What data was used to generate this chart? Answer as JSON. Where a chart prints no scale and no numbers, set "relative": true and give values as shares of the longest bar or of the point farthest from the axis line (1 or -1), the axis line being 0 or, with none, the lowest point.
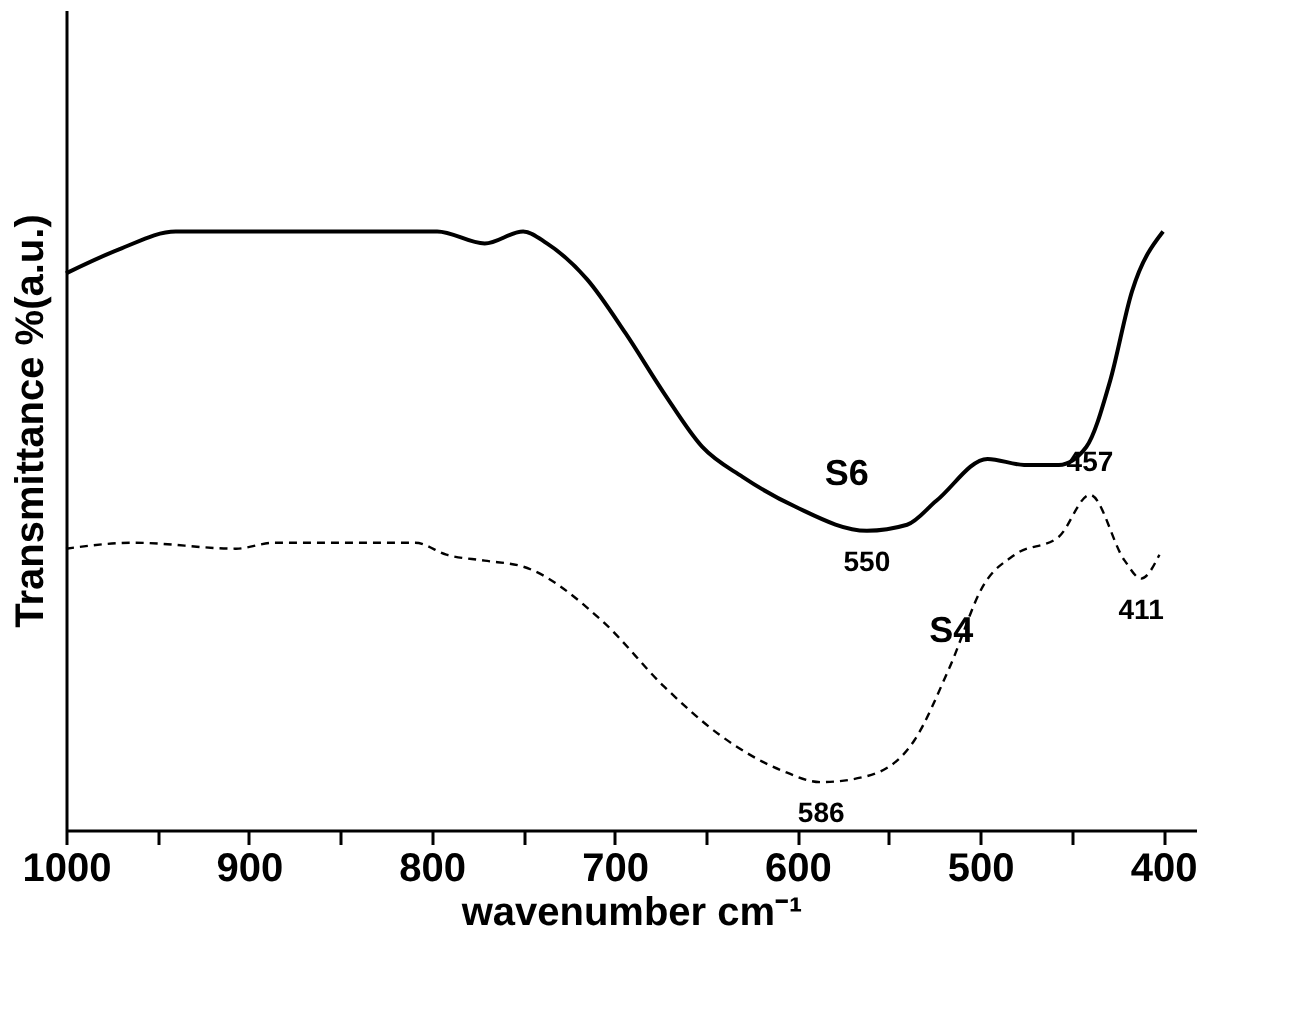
{
  "chart_data": {
    "type": "line",
    "relative": true,
    "xlabel": "wavenumber cm⁻¹",
    "ylabel": "Transmittance %(a.u.)",
    "xlim": [
      1000,
      382
    ],
    "xticks": [
      1000,
      {
        "value": 950,
        "label": null
      },
      900,
      {
        "value": 850,
        "label": null
      },
      800,
      {
        "value": 750,
        "label": null
      },
      700,
      {
        "value": 650,
        "label": null
      },
      600,
      {
        "value": 550,
        "label": null
      },
      500,
      {
        "value": 450,
        "label": null
      },
      400
    ],
    "grid": false,
    "legend": false,
    "marker": "none",
    "series": [
      {
        "name": "S6",
        "color": "#000000",
        "line_style": "solid",
        "x": [
          1000,
          971,
          940,
          877,
          797,
          771,
          750,
          737,
          715,
          694,
          673,
          652,
          630,
          601,
          562,
          540,
          524,
          496,
          476,
          457,
          442,
          429,
          417,
          400
        ],
        "values": [
          0.93,
          0.97,
          1.0,
          1.0,
          1.0,
          0.98,
          1.0,
          0.98,
          0.92,
          0.83,
          0.73,
          0.64,
          0.59,
          0.54,
          0.5,
          0.51,
          0.55,
          0.62,
          0.61,
          0.61,
          0.64,
          0.75,
          0.9,
          1.0
        ]
      },
      {
        "name": "S4",
        "color": "#000000",
        "line_style": "dashed",
        "x": [
          1000,
          963,
          907,
          886,
          809,
          792,
          771,
          750,
          707,
          673,
          643,
          609,
          587,
          562,
          536,
          517,
          498,
          481,
          457,
          440,
          421,
          412,
          402
        ],
        "values": [
          0.47,
          0.48,
          0.47,
          0.48,
          0.48,
          0.46,
          0.45,
          0.44,
          0.35,
          0.24,
          0.16,
          0.1,
          0.08,
          0.09,
          0.15,
          0.27,
          0.41,
          0.46,
          0.49,
          0.56,
          0.45,
          0.42,
          0.46
        ]
      }
    ],
    "annotations": [
      {
        "text": "550",
        "x": 562,
        "y": 0.5
      },
      {
        "text": "586",
        "x": 587,
        "y": 0.08
      },
      {
        "text": "457",
        "x": 440,
        "y": 0.56
      },
      {
        "text": "411",
        "x": 412,
        "y": 0.42
      }
    ]
  }
}
